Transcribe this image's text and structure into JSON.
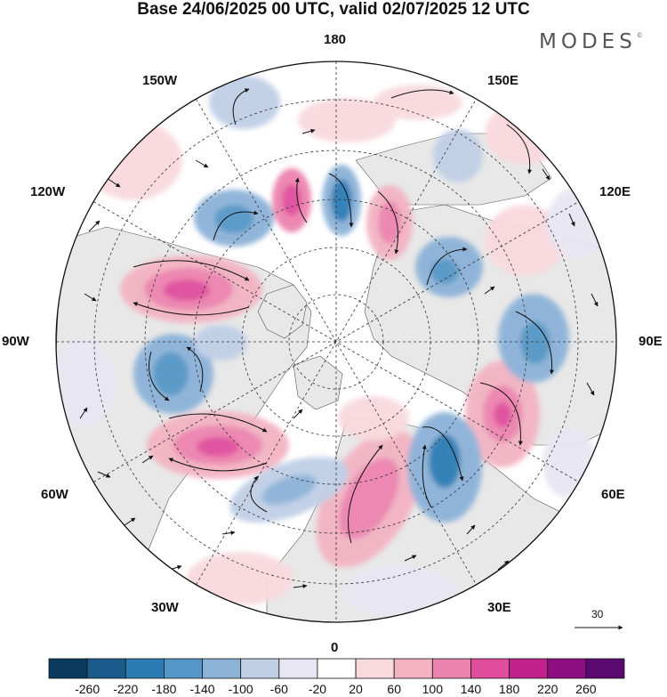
{
  "title": "Base 24/06/2025 00 UTC, valid 02/07/2025 12 UTC",
  "brand": "MODES",
  "longitude_labels": {
    "lon_180": "180",
    "lon_150E": "150E",
    "lon_120E": "120E",
    "lon_90E": "90E",
    "lon_60E": "60E",
    "lon_30E": "30E",
    "lon_0": "0",
    "lon_30W": "30W",
    "lon_60W": "60W",
    "lon_90W": "90W",
    "lon_120W": "120W",
    "lon_150W": "150W"
  },
  "reference_vector": {
    "label": "30"
  },
  "colorbar": {
    "ticks": [
      "-260",
      "-220",
      "-180",
      "-140",
      "-100",
      "-60",
      "-20",
      "20",
      "60",
      "100",
      "140",
      "180",
      "220",
      "260"
    ],
    "colors": [
      "#0b3a5e",
      "#1b5b8c",
      "#2b7cb5",
      "#5496c6",
      "#8cb2d8",
      "#c0cfe6",
      "#e7e6f2",
      "#ffffff",
      "#f8d9de",
      "#f3b3c2",
      "#ec83ae",
      "#e04d9d",
      "#c2208c",
      "#8e0e82",
      "#5a0a6e"
    ]
  },
  "colors": {
    "negative_accent": "#2b7cb5",
    "positive_accent": "#e04d9d",
    "land": "#e8e8e8"
  }
}
